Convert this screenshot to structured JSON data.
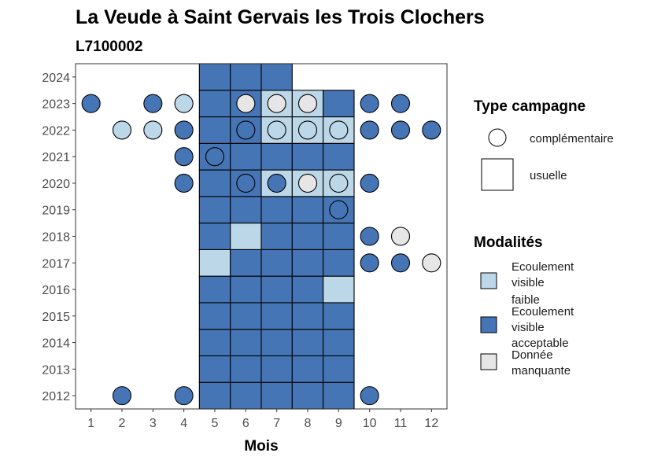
{
  "chart_data": {
    "type": "heatmap",
    "title": "La Veude à Saint Gervais les Trois Clochers",
    "subtitle": "L7100002",
    "xlabel": "Mois",
    "ylabel": "",
    "x_ticks": [
      1,
      2,
      3,
      4,
      5,
      6,
      7,
      8,
      9,
      10,
      11,
      12
    ],
    "y_ticks": [
      2012,
      2013,
      2014,
      2015,
      2016,
      2017,
      2018,
      2019,
      2020,
      2021,
      2022,
      2023,
      2024
    ],
    "xlim": [
      0.5,
      12.5
    ],
    "ylim": [
      2011.5,
      2024.5
    ],
    "grid": false,
    "legend_position": "right",
    "colors": {
      "Ecoulement visible faible": "#bcd7e8",
      "Ecoulement visible acceptable": "#4575b4",
      "Donnée manquante": "#e6e6e6"
    },
    "legend": {
      "campaign_title": "Type campagne",
      "campaign_items": [
        {
          "shape": "circle",
          "label": "complémentaire"
        },
        {
          "shape": "square",
          "label": "usuelle"
        }
      ],
      "modality_title": "Modalités",
      "modality_items": [
        {
          "key": "Ecoulement visible faible",
          "lines": [
            "Ecoulement",
            "visible",
            "faible"
          ]
        },
        {
          "key": "Ecoulement visible acceptable",
          "lines": [
            "Ecoulement",
            "visible",
            "acceptable"
          ]
        },
        {
          "key": "Donnée manquante",
          "lines": [
            "Donnée",
            "manquante"
          ]
        }
      ]
    },
    "usuelle": [
      {
        "month": 5,
        "year": 2012,
        "value": "Ecoulement visible acceptable"
      },
      {
        "month": 6,
        "year": 2012,
        "value": "Ecoulement visible acceptable"
      },
      {
        "month": 7,
        "year": 2012,
        "value": "Ecoulement visible acceptable"
      },
      {
        "month": 8,
        "year": 2012,
        "value": "Ecoulement visible acceptable"
      },
      {
        "month": 9,
        "year": 2012,
        "value": "Ecoulement visible acceptable"
      },
      {
        "month": 5,
        "year": 2013,
        "value": "Ecoulement visible acceptable"
      },
      {
        "month": 6,
        "year": 2013,
        "value": "Ecoulement visible acceptable"
      },
      {
        "month": 7,
        "year": 2013,
        "value": "Ecoulement visible acceptable"
      },
      {
        "month": 8,
        "year": 2013,
        "value": "Ecoulement visible acceptable"
      },
      {
        "month": 9,
        "year": 2013,
        "value": "Ecoulement visible acceptable"
      },
      {
        "month": 5,
        "year": 2014,
        "value": "Ecoulement visible acceptable"
      },
      {
        "month": 6,
        "year": 2014,
        "value": "Ecoulement visible acceptable"
      },
      {
        "month": 7,
        "year": 2014,
        "value": "Ecoulement visible acceptable"
      },
      {
        "month": 8,
        "year": 2014,
        "value": "Ecoulement visible acceptable"
      },
      {
        "month": 9,
        "year": 2014,
        "value": "Ecoulement visible acceptable"
      },
      {
        "month": 5,
        "year": 2015,
        "value": "Ecoulement visible acceptable"
      },
      {
        "month": 6,
        "year": 2015,
        "value": "Ecoulement visible acceptable"
      },
      {
        "month": 7,
        "year": 2015,
        "value": "Ecoulement visible acceptable"
      },
      {
        "month": 8,
        "year": 2015,
        "value": "Ecoulement visible acceptable"
      },
      {
        "month": 9,
        "year": 2015,
        "value": "Ecoulement visible acceptable"
      },
      {
        "month": 5,
        "year": 2016,
        "value": "Ecoulement visible acceptable"
      },
      {
        "month": 6,
        "year": 2016,
        "value": "Ecoulement visible acceptable"
      },
      {
        "month": 7,
        "year": 2016,
        "value": "Ecoulement visible acceptable"
      },
      {
        "month": 8,
        "year": 2016,
        "value": "Ecoulement visible acceptable"
      },
      {
        "month": 9,
        "year": 2016,
        "value": "Ecoulement visible faible"
      },
      {
        "month": 5,
        "year": 2017,
        "value": "Ecoulement visible faible"
      },
      {
        "month": 6,
        "year": 2017,
        "value": "Ecoulement visible acceptable"
      },
      {
        "month": 7,
        "year": 2017,
        "value": "Ecoulement visible acceptable"
      },
      {
        "month": 8,
        "year": 2017,
        "value": "Ecoulement visible acceptable"
      },
      {
        "month": 9,
        "year": 2017,
        "value": "Ecoulement visible acceptable"
      },
      {
        "month": 5,
        "year": 2018,
        "value": "Ecoulement visible acceptable"
      },
      {
        "month": 6,
        "year": 2018,
        "value": "Ecoulement visible faible"
      },
      {
        "month": 7,
        "year": 2018,
        "value": "Ecoulement visible acceptable"
      },
      {
        "month": 8,
        "year": 2018,
        "value": "Ecoulement visible acceptable"
      },
      {
        "month": 9,
        "year": 2018,
        "value": "Ecoulement visible acceptable"
      },
      {
        "month": 5,
        "year": 2019,
        "value": "Ecoulement visible acceptable"
      },
      {
        "month": 6,
        "year": 2019,
        "value": "Ecoulement visible acceptable"
      },
      {
        "month": 7,
        "year": 2019,
        "value": "Ecoulement visible acceptable"
      },
      {
        "month": 8,
        "year": 2019,
        "value": "Ecoulement visible acceptable"
      },
      {
        "month": 9,
        "year": 2019,
        "value": "Ecoulement visible acceptable"
      },
      {
        "month": 5,
        "year": 2020,
        "value": "Ecoulement visible acceptable"
      },
      {
        "month": 6,
        "year": 2020,
        "value": "Ecoulement visible acceptable"
      },
      {
        "month": 7,
        "year": 2020,
        "value": "Ecoulement visible faible"
      },
      {
        "month": 8,
        "year": 2020,
        "value": "Ecoulement visible faible"
      },
      {
        "month": 9,
        "year": 2020,
        "value": "Ecoulement visible faible"
      },
      {
        "month": 5,
        "year": 2021,
        "value": "Ecoulement visible acceptable"
      },
      {
        "month": 6,
        "year": 2021,
        "value": "Ecoulement visible acceptable"
      },
      {
        "month": 7,
        "year": 2021,
        "value": "Ecoulement visible acceptable"
      },
      {
        "month": 8,
        "year": 2021,
        "value": "Ecoulement visible acceptable"
      },
      {
        "month": 9,
        "year": 2021,
        "value": "Ecoulement visible acceptable"
      },
      {
        "month": 5,
        "year": 2022,
        "value": "Ecoulement visible acceptable"
      },
      {
        "month": 6,
        "year": 2022,
        "value": "Ecoulement visible acceptable"
      },
      {
        "month": 7,
        "year": 2022,
        "value": "Ecoulement visible faible"
      },
      {
        "month": 8,
        "year": 2022,
        "value": "Ecoulement visible faible"
      },
      {
        "month": 9,
        "year": 2022,
        "value": "Ecoulement visible faible"
      },
      {
        "month": 5,
        "year": 2023,
        "value": "Ecoulement visible acceptable"
      },
      {
        "month": 6,
        "year": 2023,
        "value": "Ecoulement visible acceptable"
      },
      {
        "month": 7,
        "year": 2023,
        "value": "Ecoulement visible faible"
      },
      {
        "month": 8,
        "year": 2023,
        "value": "Ecoulement visible faible"
      },
      {
        "month": 9,
        "year": 2023,
        "value": "Ecoulement visible acceptable"
      },
      {
        "month": 5,
        "year": 2024,
        "value": "Ecoulement visible acceptable"
      },
      {
        "month": 6,
        "year": 2024,
        "value": "Ecoulement visible acceptable"
      },
      {
        "month": 7,
        "year": 2024,
        "value": "Ecoulement visible acceptable"
      }
    ],
    "complementaire": [
      {
        "month": 2,
        "year": 2012,
        "value": "Ecoulement visible acceptable"
      },
      {
        "month": 4,
        "year": 2012,
        "value": "Ecoulement visible acceptable"
      },
      {
        "month": 10,
        "year": 2012,
        "value": "Ecoulement visible acceptable"
      },
      {
        "month": 10,
        "year": 2017,
        "value": "Ecoulement visible acceptable"
      },
      {
        "month": 11,
        "year": 2017,
        "value": "Ecoulement visible acceptable"
      },
      {
        "month": 12,
        "year": 2017,
        "value": "Donnée manquante"
      },
      {
        "month": 10,
        "year": 2018,
        "value": "Ecoulement visible acceptable"
      },
      {
        "month": 11,
        "year": 2018,
        "value": "Donnée manquante"
      },
      {
        "month": 9,
        "year": 2019,
        "value": "Ecoulement visible acceptable"
      },
      {
        "month": 4,
        "year": 2020,
        "value": "Ecoulement visible acceptable"
      },
      {
        "month": 6,
        "year": 2020,
        "value": "Ecoulement visible acceptable"
      },
      {
        "month": 7,
        "year": 2020,
        "value": "Ecoulement visible acceptable"
      },
      {
        "month": 8,
        "year": 2020,
        "value": "Donnée manquante"
      },
      {
        "month": 9,
        "year": 2020,
        "value": "Ecoulement visible faible"
      },
      {
        "month": 10,
        "year": 2020,
        "value": "Ecoulement visible acceptable"
      },
      {
        "month": 4,
        "year": 2021,
        "value": "Ecoulement visible acceptable"
      },
      {
        "month": 5,
        "year": 2021,
        "value": "Ecoulement visible acceptable"
      },
      {
        "month": 2,
        "year": 2022,
        "value": "Ecoulement visible faible"
      },
      {
        "month": 3,
        "year": 2022,
        "value": "Ecoulement visible faible"
      },
      {
        "month": 4,
        "year": 2022,
        "value": "Ecoulement visible acceptable"
      },
      {
        "month": 6,
        "year": 2022,
        "value": "Ecoulement visible acceptable"
      },
      {
        "month": 7,
        "year": 2022,
        "value": "Ecoulement visible faible"
      },
      {
        "month": 8,
        "year": 2022,
        "value": "Ecoulement visible faible"
      },
      {
        "month": 9,
        "year": 2022,
        "value": "Ecoulement visible faible"
      },
      {
        "month": 10,
        "year": 2022,
        "value": "Ecoulement visible acceptable"
      },
      {
        "month": 11,
        "year": 2022,
        "value": "Ecoulement visible acceptable"
      },
      {
        "month": 12,
        "year": 2022,
        "value": "Ecoulement visible acceptable"
      },
      {
        "month": 1,
        "year": 2023,
        "value": "Ecoulement visible acceptable"
      },
      {
        "month": 3,
        "year": 2023,
        "value": "Ecoulement visible acceptable"
      },
      {
        "month": 4,
        "year": 2023,
        "value": "Ecoulement visible faible"
      },
      {
        "month": 6,
        "year": 2023,
        "value": "Donnée manquante"
      },
      {
        "month": 7,
        "year": 2023,
        "value": "Donnée manquante"
      },
      {
        "month": 8,
        "year": 2023,
        "value": "Donnée manquante"
      },
      {
        "month": 10,
        "year": 2023,
        "value": "Ecoulement visible acceptable"
      },
      {
        "month": 11,
        "year": 2023,
        "value": "Ecoulement visible acceptable"
      }
    ]
  }
}
